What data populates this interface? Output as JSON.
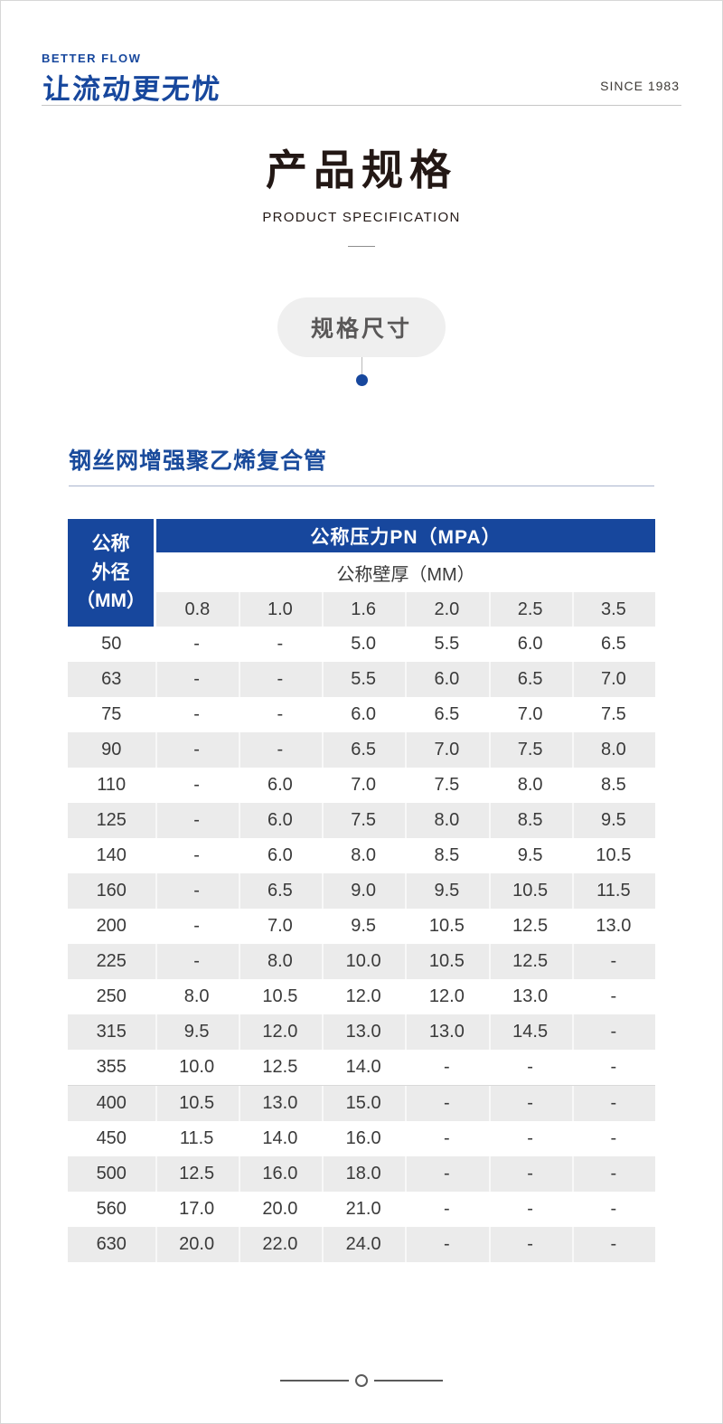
{
  "header": {
    "brand_en": "BETTER FLOW",
    "brand_zh": "让流动更无忧",
    "since": "SINCE 1983"
  },
  "title": {
    "zh": "产品规格",
    "en": "PRODUCT SPECIFICATION"
  },
  "badge": {
    "label": "规格尺寸"
  },
  "section": {
    "title": "钢丝网增强聚乙烯复合管"
  },
  "colors": {
    "primary_blue": "#17479D",
    "section_title_blue": "#1A4B9C",
    "row_stripe_gray": "#EBEBEB"
  },
  "chart_data": {
    "type": "table",
    "title": "钢丝网增强聚乙烯复合管",
    "group_header": "公称压力PN（MPA）",
    "sub_header": "公称壁厚（MM）",
    "corner_header": "公称\n外径\n（MM）",
    "pressure_columns": [
      "0.8",
      "1.0",
      "1.6",
      "2.0",
      "2.5",
      "3.5"
    ],
    "rows": [
      {
        "od": "50",
        "values": [
          "-",
          "-",
          "5.0",
          "5.5",
          "6.0",
          "6.5"
        ]
      },
      {
        "od": "63",
        "values": [
          "-",
          "-",
          "5.5",
          "6.0",
          "6.5",
          "7.0"
        ]
      },
      {
        "od": "75",
        "values": [
          "-",
          "-",
          "6.0",
          "6.5",
          "7.0",
          "7.5"
        ]
      },
      {
        "od": "90",
        "values": [
          "-",
          "-",
          "6.5",
          "7.0",
          "7.5",
          "8.0"
        ]
      },
      {
        "od": "110",
        "values": [
          "-",
          "6.0",
          "7.0",
          "7.5",
          "8.0",
          "8.5"
        ]
      },
      {
        "od": "125",
        "values": [
          "-",
          "6.0",
          "7.5",
          "8.0",
          "8.5",
          "9.5"
        ]
      },
      {
        "od": "140",
        "values": [
          "-",
          "6.0",
          "8.0",
          "8.5",
          "9.5",
          "10.5"
        ]
      },
      {
        "od": "160",
        "values": [
          "-",
          "6.5",
          "9.0",
          "9.5",
          "10.5",
          "11.5"
        ]
      },
      {
        "od": "200",
        "values": [
          "-",
          "7.0",
          "9.5",
          "10.5",
          "12.5",
          "13.0"
        ]
      },
      {
        "od": "225",
        "values": [
          "-",
          "8.0",
          "10.0",
          "10.5",
          "12.5",
          "-"
        ]
      },
      {
        "od": "250",
        "values": [
          "8.0",
          "10.5",
          "12.0",
          "12.0",
          "13.0",
          "-"
        ]
      },
      {
        "od": "315",
        "values": [
          "9.5",
          "12.0",
          "13.0",
          "13.0",
          "14.5",
          "-"
        ]
      },
      {
        "od": "355",
        "values": [
          "10.0",
          "12.5",
          "14.0",
          "-",
          "-",
          "-"
        ]
      },
      {
        "od": "400",
        "values": [
          "10.5",
          "13.0",
          "15.0",
          "-",
          "-",
          "-"
        ]
      },
      {
        "od": "450",
        "values": [
          "11.5",
          "14.0",
          "16.0",
          "-",
          "-",
          "-"
        ]
      },
      {
        "od": "500",
        "values": [
          "12.5",
          "16.0",
          "18.0",
          "-",
          "-",
          "-"
        ]
      },
      {
        "od": "560",
        "values": [
          "17.0",
          "20.0",
          "21.0",
          "-",
          "-",
          "-"
        ]
      },
      {
        "od": "630",
        "values": [
          "20.0",
          "22.0",
          "24.0",
          "-",
          "-",
          "-"
        ]
      }
    ]
  }
}
